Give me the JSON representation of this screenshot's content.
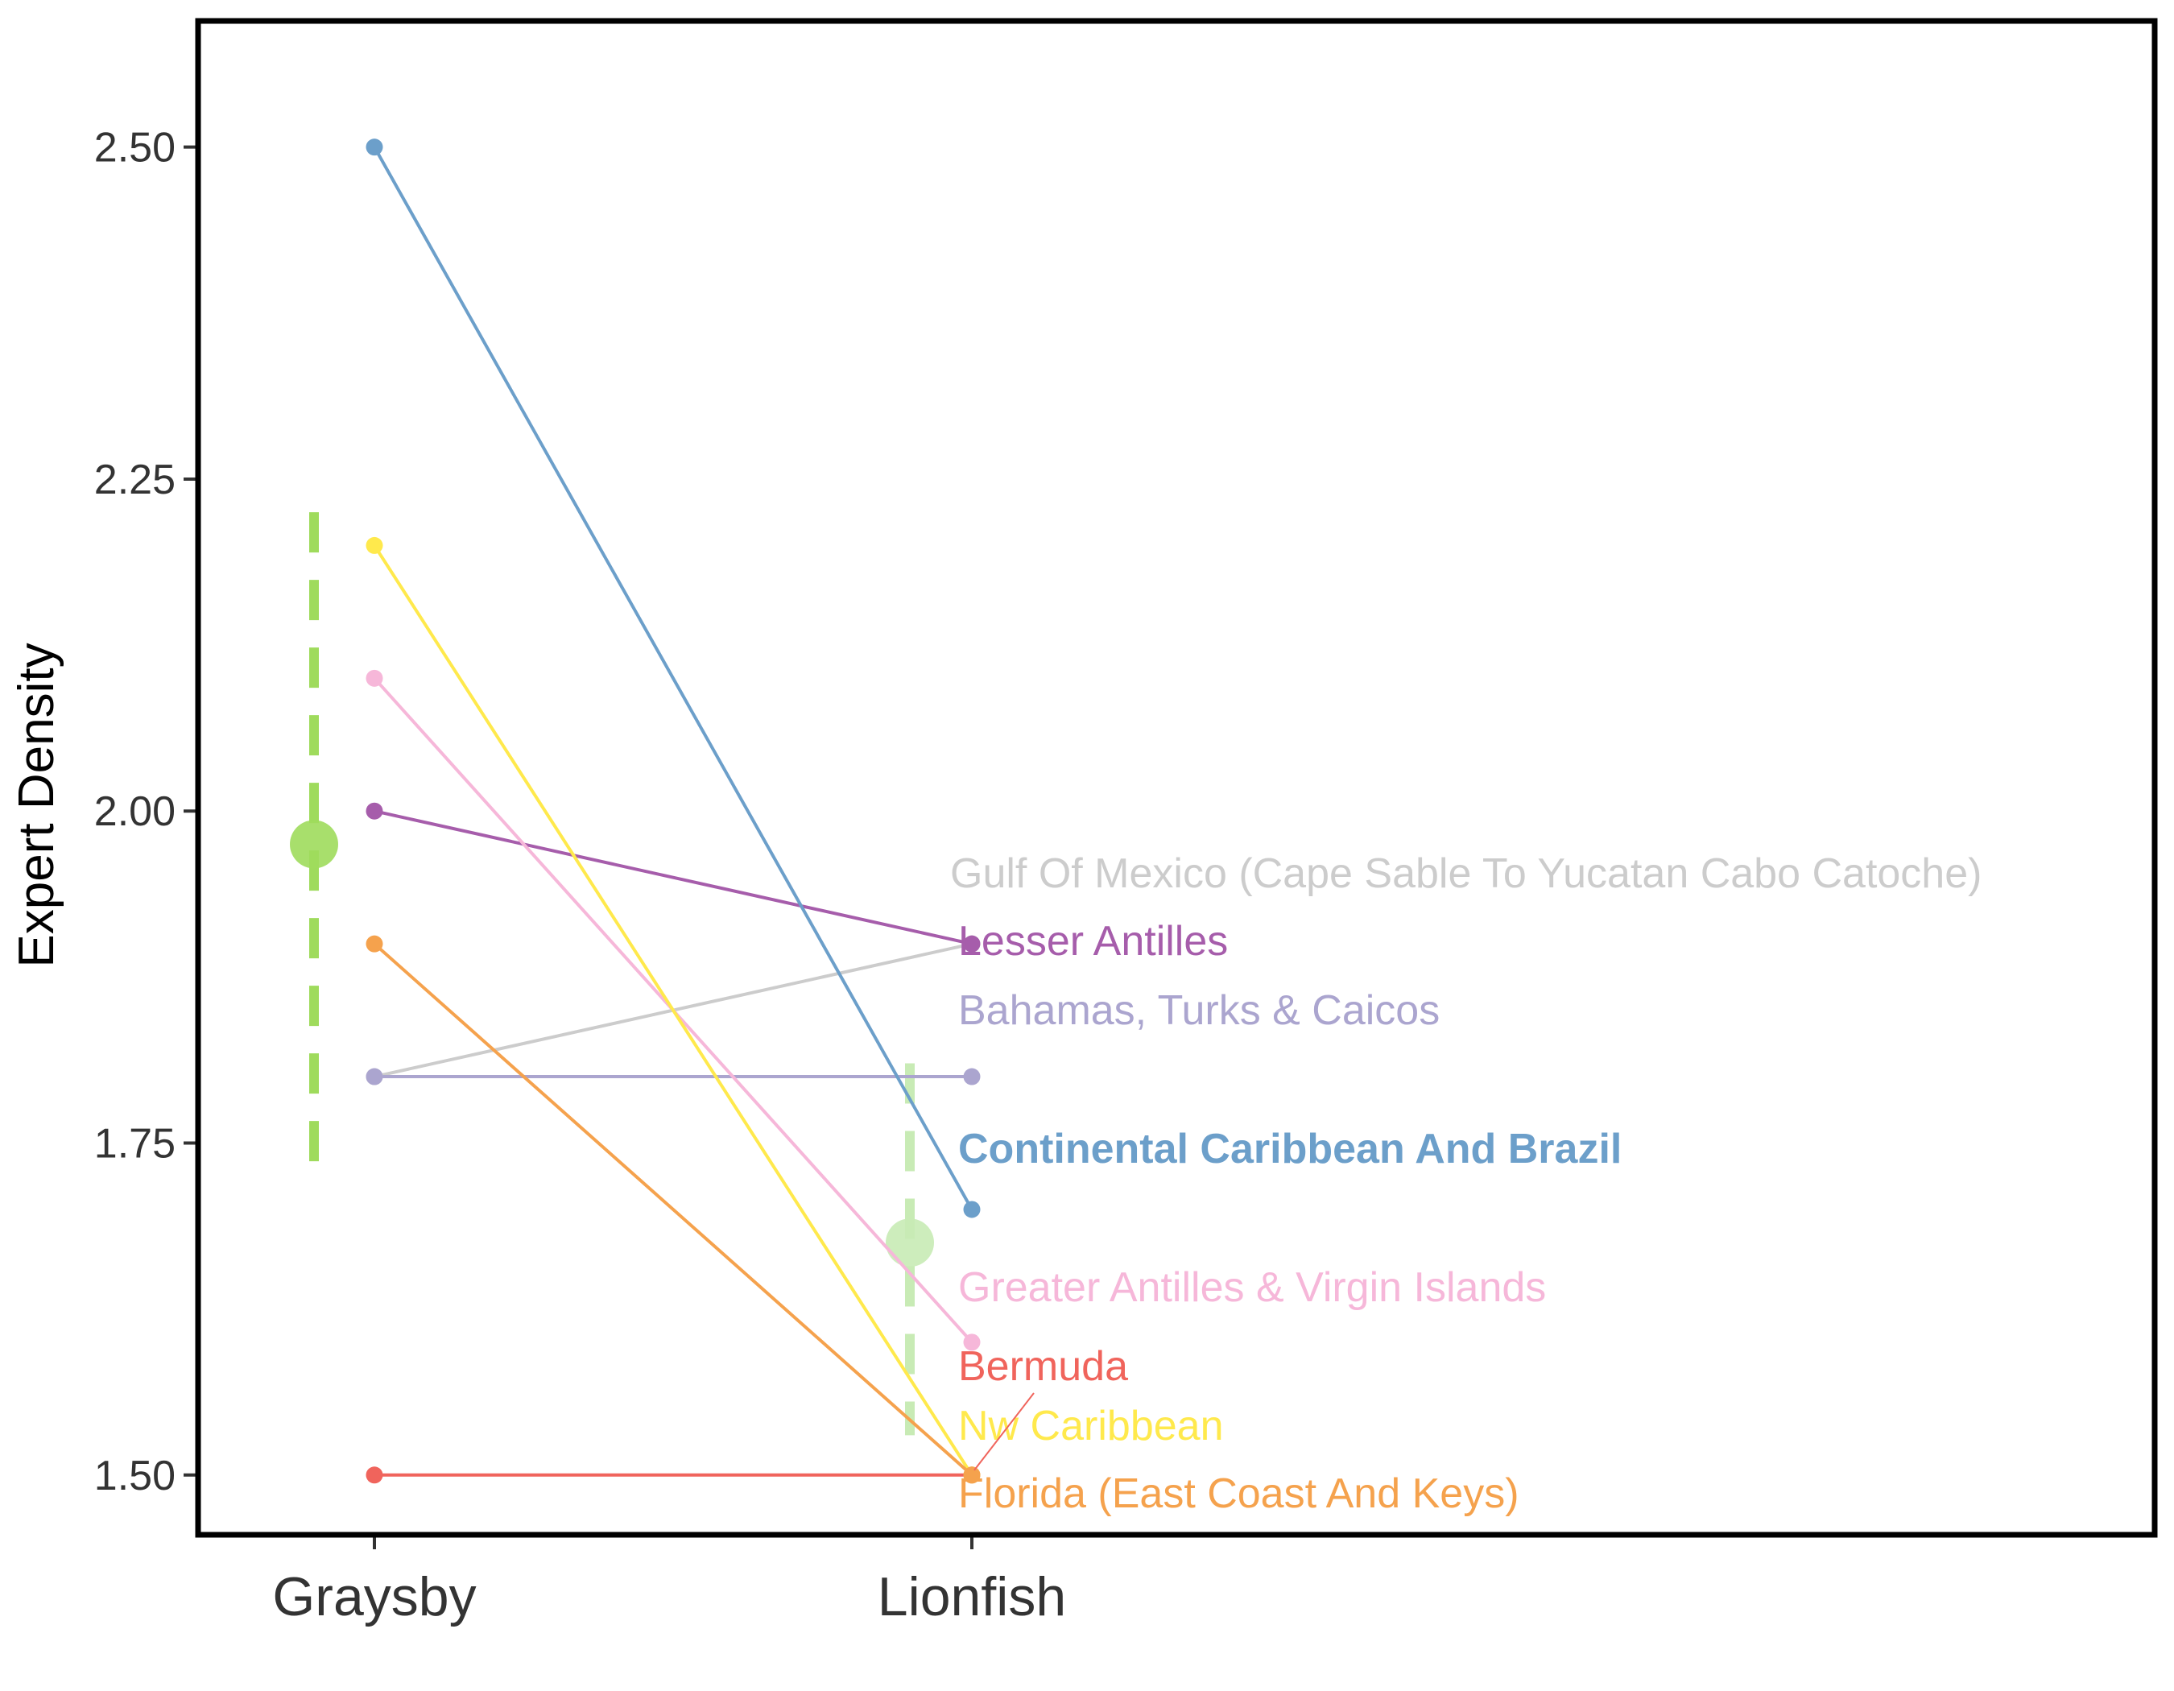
{
  "chart_data": {
    "type": "line",
    "title": "",
    "xlabel": "",
    "ylabel": "Expert Density",
    "categories": [
      "Graysby",
      "Lionfish"
    ],
    "ylim": [
      1.455,
      2.595
    ],
    "yticks": [
      1.5,
      1.75,
      2.0,
      2.25,
      2.5
    ],
    "ytick_labels": [
      "1.50",
      "1.75",
      "2.00",
      "2.25",
      "2.50"
    ],
    "grid": false,
    "legend": "none",
    "series": [
      {
        "name": "Gulf Of Mexico (Cape Sable To Yucatan Cabo Catoche)",
        "values": [
          1.8,
          1.9
        ],
        "color": "#CCCCCC",
        "bold": false
      },
      {
        "name": "Lesser Antilles",
        "values": [
          2.0,
          1.9
        ],
        "color": "#A65DAB",
        "bold": false
      },
      {
        "name": "Bahamas, Turks & Caicos",
        "values": [
          1.8,
          1.8
        ],
        "color": "#ABA5CF",
        "bold": false
      },
      {
        "name": "Continental Caribbean And Brazil",
        "values": [
          2.5,
          1.7
        ],
        "color": "#6C9FCA",
        "bold": true
      },
      {
        "name": "Greater Antilles & Virgin Islands",
        "values": [
          2.1,
          1.6
        ],
        "color": "#F6B7D9",
        "bold": false
      },
      {
        "name": "Bermuda",
        "values": [
          1.5,
          1.5
        ],
        "color": "#F0645C",
        "bold": false
      },
      {
        "name": "Nw Caribbean",
        "values": [
          2.2,
          1.5
        ],
        "color": "#FFE94C",
        "bold": false
      },
      {
        "name": "Florida (East Coast And Keys)",
        "values": [
          1.9,
          1.5
        ],
        "color": "#F5A24D",
        "bold": false
      }
    ],
    "summary": [
      {
        "category": "Graysby",
        "mean": 1.975,
        "low": 1.725,
        "high": 2.225,
        "color": "#9FDB5C"
      },
      {
        "category": "Lionfish",
        "mean": 1.675,
        "low": 1.53,
        "high": 1.81,
        "color": "#C8EBB5"
      }
    ]
  }
}
